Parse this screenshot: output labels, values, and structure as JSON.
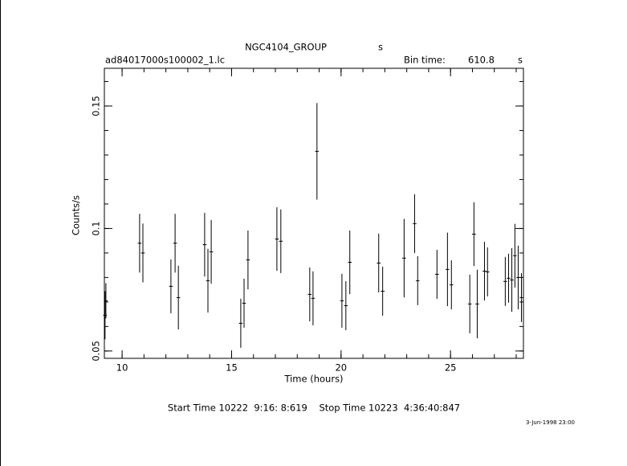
{
  "chart_data": {
    "type": "errorbar",
    "title": "NGC4104_GROUP",
    "title_unit": "s",
    "subtitle": "ad84017000s100002_1.lc",
    "bin_time_label": "Bin time:",
    "bin_time": 610.8,
    "bin_time_unit": "s",
    "xlabel": "Time (hours)",
    "ylabel": "Counts/s",
    "footer": "Start Time 10222  9:16: 8:619    Stop Time 10223  4:36:40:847",
    "date": "3-Jun-1998 23:00",
    "xlim": [
      9.19,
      28.33
    ],
    "ylim": [
      0.047,
      0.1654
    ],
    "xticks": [
      10,
      15,
      20,
      25
    ],
    "yticks": [
      0.05,
      0.1,
      0.15
    ],
    "xminorticks": [
      10,
      11,
      12,
      13,
      14,
      15,
      16,
      17,
      18,
      19,
      20,
      21,
      22,
      23,
      24,
      25,
      26,
      27,
      28
    ],
    "yminorticks": [
      0.05,
      0.06,
      0.07,
      0.08,
      0.09,
      0.1,
      0.11,
      0.12,
      0.13,
      0.14,
      0.15,
      0.16
    ],
    "color": "#000000",
    "x": [
      9.22,
      9.26,
      10.8,
      10.95,
      12.23,
      12.42,
      12.57,
      13.77,
      13.92,
      14.07,
      15.42,
      15.57,
      15.75,
      17.07,
      17.25,
      18.57,
      18.72,
      18.9,
      20.04,
      20.22,
      20.4,
      21.72,
      21.9,
      22.88,
      23.36,
      23.5,
      24.38,
      24.86,
      25.04,
      25.88,
      26.07,
      26.22,
      26.55,
      26.69,
      27.5,
      27.65,
      27.8,
      27.94,
      28.09,
      28.24
    ],
    "values": [
      0.0646,
      0.0705,
      0.094,
      0.09,
      0.0764,
      0.094,
      0.0718,
      0.0934,
      0.0787,
      0.0905,
      0.0613,
      0.0695,
      0.0872,
      0.0957,
      0.0948,
      0.0731,
      0.0715,
      0.1315,
      0.0705,
      0.0685,
      0.0862,
      0.0859,
      0.0744,
      0.0879,
      0.102,
      0.0787,
      0.0813,
      0.0833,
      0.077,
      0.0692,
      0.0977,
      0.0692,
      0.0826,
      0.0823,
      0.0784,
      0.0797,
      0.079,
      0.0889,
      0.08,
      0.0718
    ],
    "errors": [
      0.0098,
      0.0072,
      0.012,
      0.012,
      0.011,
      0.012,
      0.013,
      0.013,
      0.013,
      0.013,
      0.01,
      0.01,
      0.012,
      0.013,
      0.013,
      0.011,
      0.011,
      0.0197,
      0.011,
      0.01,
      0.013,
      0.012,
      0.01,
      0.016,
      0.012,
      0.01,
      0.01,
      0.015,
      0.01,
      0.012,
      0.013,
      0.014,
      0.012,
      0.01,
      0.01,
      0.01,
      0.013,
      0.013,
      0.013,
      0.01
    ]
  }
}
